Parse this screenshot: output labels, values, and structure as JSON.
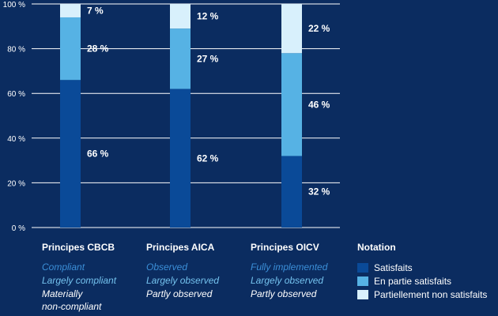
{
  "chart_data": {
    "type": "bar",
    "stacked": true,
    "categories": [
      "Principes CBCB",
      "Principes AICA",
      "Principes OICV"
    ],
    "series": [
      {
        "name": "Satisfaits",
        "values": [
          66,
          62,
          32
        ],
        "labels": [
          "66 %",
          "62 %",
          "32 %"
        ]
      },
      {
        "name": "En partie satisfaits",
        "values": [
          28,
          27,
          46
        ],
        "labels": [
          "28 %",
          "27 %",
          "46 %"
        ]
      },
      {
        "name": "Partiellement non satisfaits",
        "values": [
          7,
          12,
          22
        ],
        "labels": [
          "7 %",
          "12 %",
          "22 %"
        ]
      }
    ],
    "ylim": [
      0,
      100
    ],
    "yticks": [
      0,
      20,
      40,
      60,
      80,
      100
    ],
    "ytick_labels": [
      "0 %",
      "20 %",
      "40 %",
      "60 %",
      "80 %",
      "100 %"
    ],
    "grid": true,
    "colors": {
      "Satisfaits": "#0a4a98",
      "En partie satisfaits": "#56b2e4",
      "Partiellement non satisfaits": "#d8f0fc"
    }
  },
  "columns": [
    {
      "heading": "Principes CBCB",
      "lines": [
        "Compliant",
        "Largely compliant",
        "Materially",
        "non-compliant"
      ]
    },
    {
      "heading": "Principes AICA",
      "lines": [
        "Observed",
        "Largely observed",
        "Partly observed"
      ]
    },
    {
      "heading": "Principes OICV",
      "lines": [
        "Fully implemented",
        "Largely observed",
        "Partly observed"
      ]
    }
  ],
  "legend": {
    "title": "Notation",
    "items": [
      "Satisfaits",
      "En partie satisfaits",
      "Partiellement non satisfaits"
    ]
  },
  "text_colors": {
    "line1": "#3b8fd8",
    "line2": "#74c2ee",
    "line3": "#ffffff"
  }
}
